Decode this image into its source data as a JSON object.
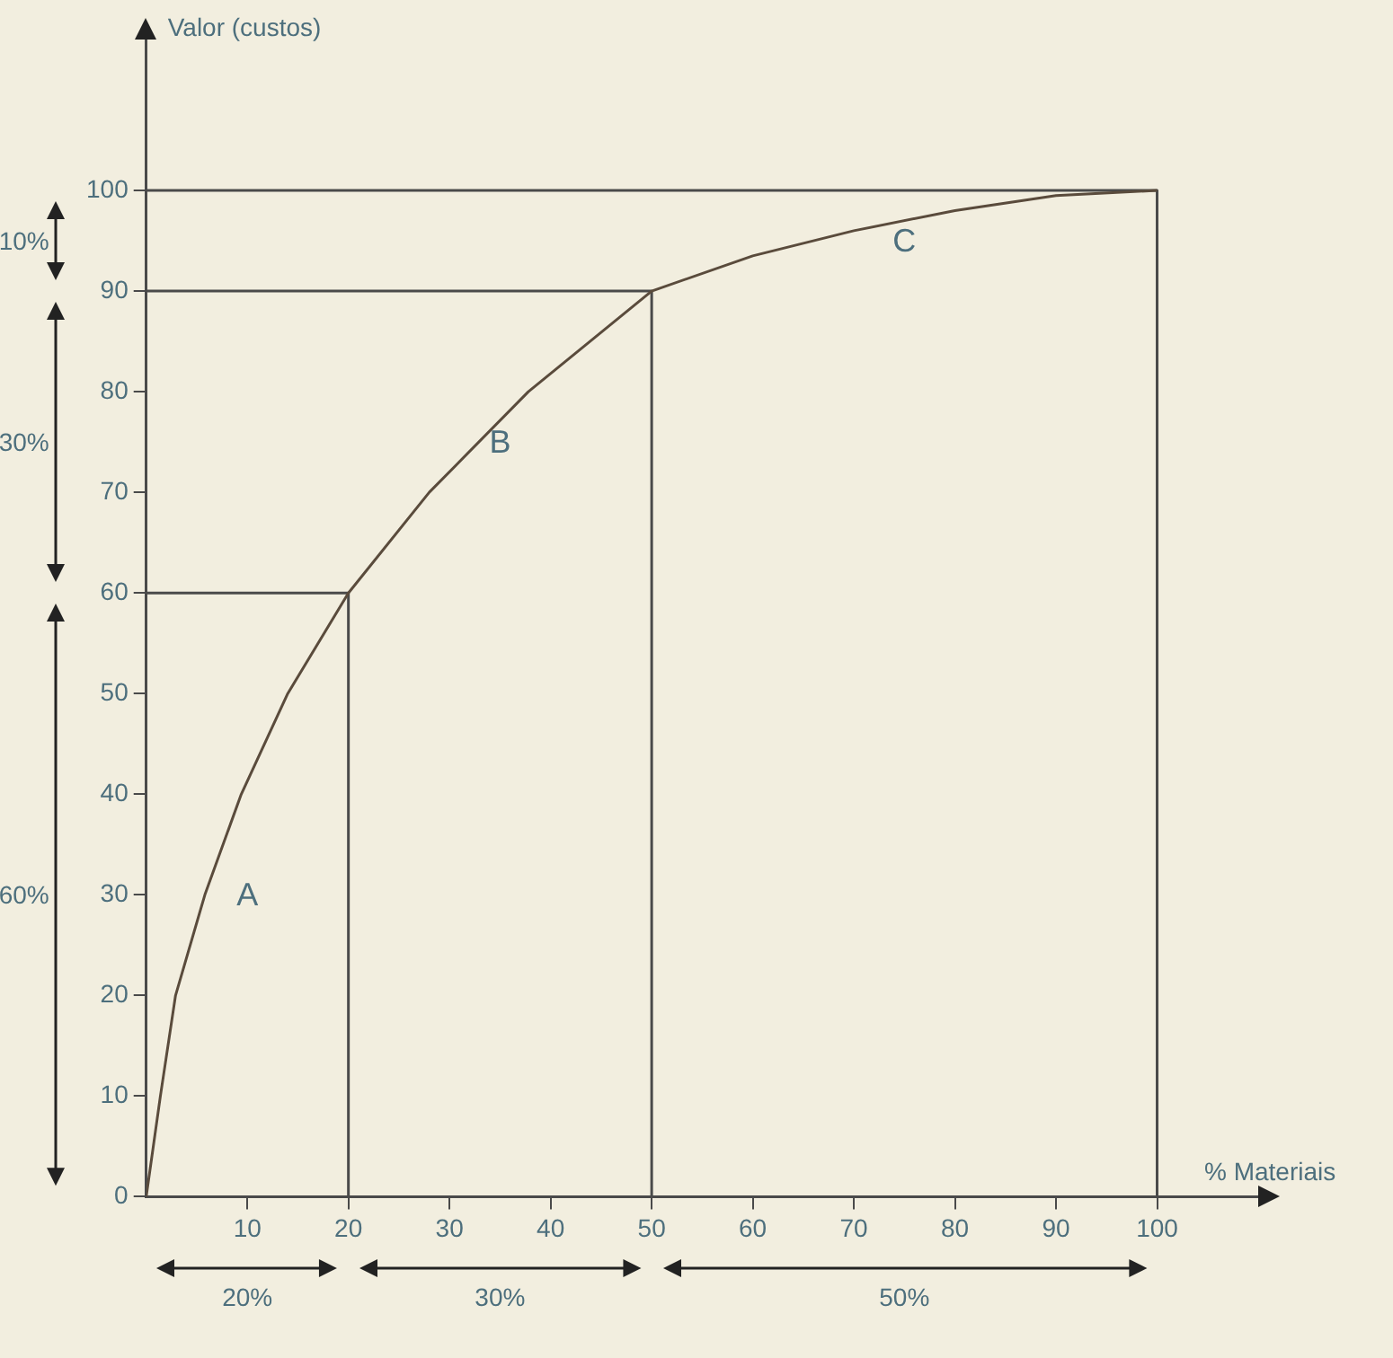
{
  "chart_data": {
    "type": "line",
    "xlabel": "% Materiais",
    "ylabel": "Valor (custos)",
    "xlim": [
      0,
      110
    ],
    "ylim": [
      0,
      115
    ],
    "xticks": [
      10,
      20,
      30,
      40,
      50,
      60,
      70,
      80,
      90,
      100
    ],
    "yticks": [
      0,
      10,
      20,
      30,
      40,
      50,
      60,
      70,
      80,
      90,
      100
    ],
    "grid": false,
    "legend": false,
    "marker": "none",
    "line_style": "solid",
    "series": [
      {
        "color": "#5a4b3c",
        "x": [
          0,
          1.4,
          2.9,
          5.8,
          9.4,
          14,
          20,
          28,
          37.8,
          50,
          60,
          70,
          80,
          90,
          100
        ],
        "values": [
          0,
          10,
          20,
          30,
          40,
          50,
          60,
          70,
          80,
          90,
          93.5,
          96,
          98,
          99.5,
          100
        ]
      },
      {
        "color": "#4a4a4a",
        "x": [
          0,
          20,
          20
        ],
        "values": [
          60,
          60,
          0
        ]
      },
      {
        "color": "#4a4a4a",
        "x": [
          0,
          50,
          50
        ],
        "values": [
          90,
          90,
          0
        ]
      },
      {
        "color": "#4a4a4a",
        "x": [
          0,
          100,
          100
        ],
        "values": [
          100,
          100,
          0
        ]
      }
    ],
    "annotations": [
      "A",
      "B",
      "C",
      "10%",
      "30%",
      "60%",
      "20%",
      "30%",
      "50%"
    ]
  }
}
